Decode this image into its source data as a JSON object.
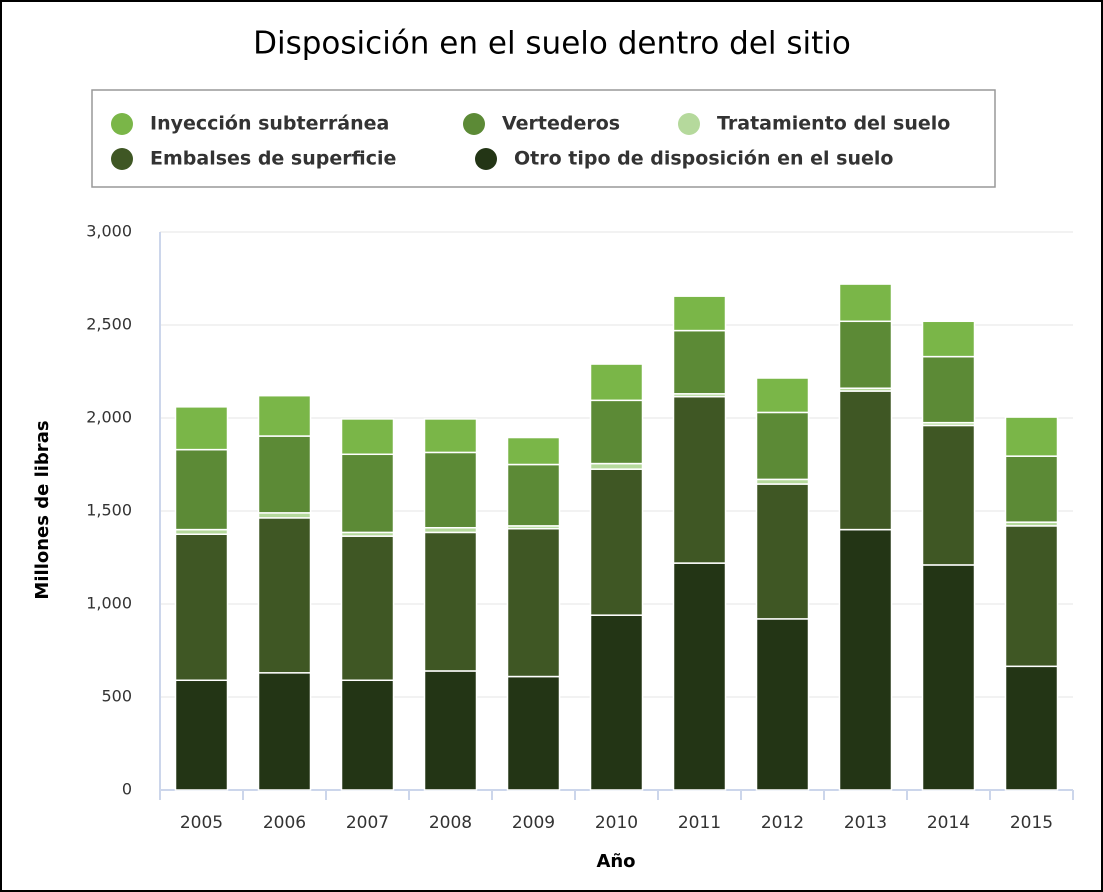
{
  "chart_data": {
    "type": "stacked_bar",
    "title": "Disposición en el suelo dentro del sitio",
    "x_label": "Año",
    "y_label": "Millones de libras",
    "categories": [
      "2005",
      "2006",
      "2007",
      "2008",
      "2009",
      "2010",
      "2011",
      "2012",
      "2013",
      "2014",
      "2015"
    ],
    "series": [
      {
        "name": "Otro tipo de disposición en el suelo",
        "color": "#233515",
        "values": [
          590,
          630,
          590,
          640,
          610,
          940,
          1220,
          920,
          1400,
          1210,
          665
        ]
      },
      {
        "name": "Embalses de superficie",
        "color": "#3f5724",
        "values": [
          785,
          833,
          775,
          745,
          795,
          785,
          895,
          725,
          745,
          750,
          755
        ]
      },
      {
        "name": "Tratamiento del suelo",
        "color": "#b5d99c",
        "values": [
          25,
          27,
          20,
          25,
          15,
          30,
          15,
          25,
          15,
          15,
          20
        ]
      },
      {
        "name": "Vertederos",
        "color": "#5c8a36",
        "values": [
          430,
          413,
          420,
          405,
          330,
          340,
          340,
          360,
          360,
          355,
          355
        ]
      },
      {
        "name": "Inyección subterránea",
        "color": "#7ab648",
        "values": [
          230,
          217,
          190,
          180,
          145,
          195,
          185,
          185,
          200,
          190,
          210
        ]
      }
    ],
    "ylim": [
      0,
      3000
    ],
    "yticks": [
      0,
      500,
      {
        "value": 1000,
        "label": "1,000"
      },
      {
        "value": 1500,
        "label": "1,500"
      },
      {
        "value": 2000,
        "label": "2,000"
      },
      {
        "value": 2500,
        "label": "2,500"
      },
      {
        "value": 3000,
        "label": "3,000"
      }
    ],
    "grid": true
  }
}
